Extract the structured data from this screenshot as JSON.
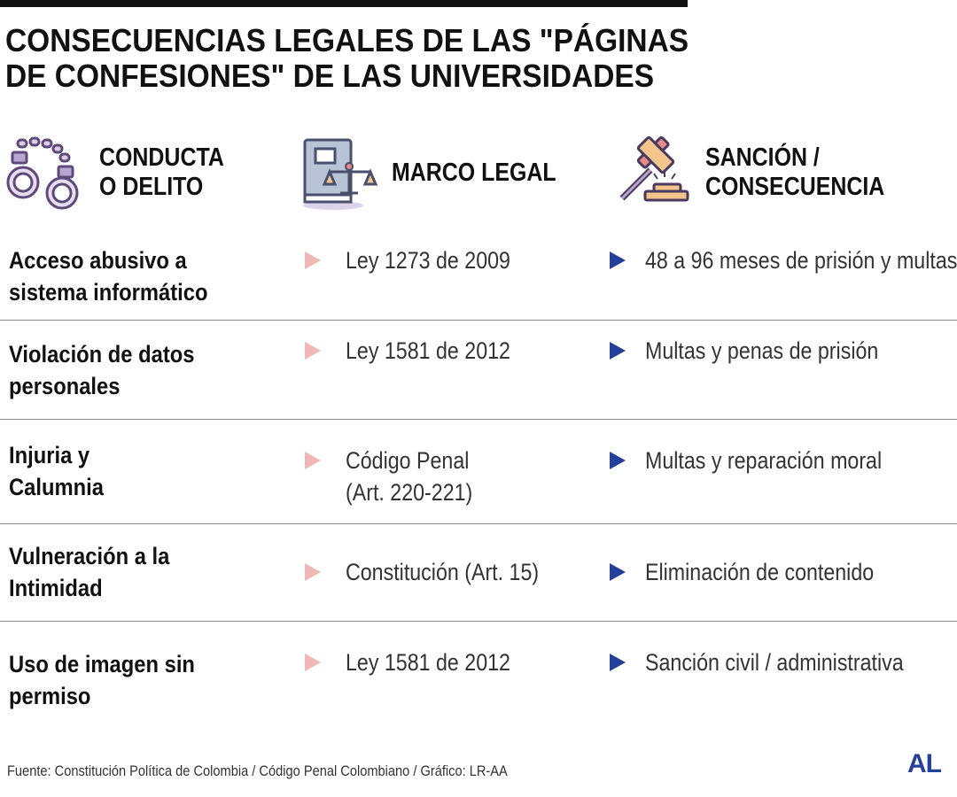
{
  "title": "CONSECUENCIAS LEGALES DE LAS \"PÁGINAS DE CONFESIONES\" DE LAS UNIVERSIDADES",
  "title_lines": [
    "CONSECUENCIAS LEGALES DE LAS \"PÁGINAS",
    "DE CONFESIONES\" DE LAS UNIVERSIDADES"
  ],
  "headers": [
    {
      "label_line1": "CONDUCTA",
      "label_line2": "O DELITO",
      "icon": "handcuffs-icon"
    },
    {
      "label_line1": "MARCO LEGAL",
      "label_line2": "",
      "icon": "law-book-scales-icon"
    },
    {
      "label_line1": "SANCIÓN /",
      "label_line2": "CONSECUENCIA",
      "icon": "gavel-icon"
    }
  ],
  "rows": [
    {
      "conduct": [
        "Acceso abusivo a",
        "sistema informático"
      ],
      "legal": [
        "Ley 1273 de 2009"
      ],
      "sanction": "48 a 96 meses de prisión y multas"
    },
    {
      "conduct": [
        "Violación de datos",
        "personales"
      ],
      "legal": [
        "Ley 1581 de 2012"
      ],
      "sanction": "Multas y penas de prisión"
    },
    {
      "conduct": [
        "Injuria y",
        "Calumnia"
      ],
      "legal": [
        "Código Penal",
        "(Art. 220-221)"
      ],
      "sanction": "Multas y reparación moral"
    },
    {
      "conduct": [
        "Vulneración a la",
        "Intimidad"
      ],
      "legal": [
        "Constitución (Art. 15)"
      ],
      "sanction": "Eliminación de contenido"
    },
    {
      "conduct": [
        "Uso de imagen sin",
        "permiso"
      ],
      "legal": [
        "Ley 1581 de 2012"
      ],
      "sanction": "Sanción civil / administrativa"
    }
  ],
  "source": "Fuente: Constitución Política de Colombia / Código Penal Colombiano / Gráfico: LR-AA",
  "logo": "AL",
  "colors": {
    "accent_blue": "#26409a",
    "bullet_pink": "#f0b7b7",
    "icon_purple": "#8a6fa8"
  }
}
